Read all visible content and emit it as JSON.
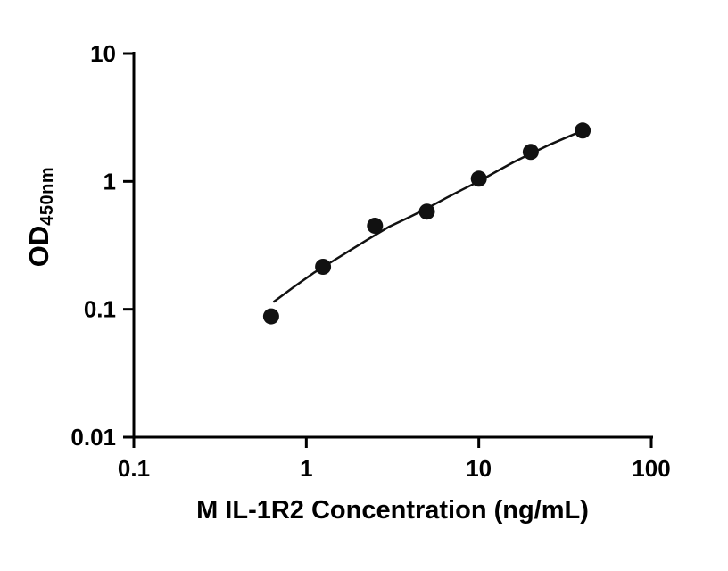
{
  "chart_data": {
    "type": "scatter",
    "title": "",
    "xlabel": "M IL-1R2 Concentration (ng/mL)",
    "ylabel_main": "OD",
    "ylabel_sub": "450nm",
    "x_scale": "log",
    "y_scale": "log",
    "xlim": [
      0.1,
      100
    ],
    "ylim": [
      0.01,
      10
    ],
    "grid": false,
    "legend": "none",
    "x_ticks": [
      {
        "value": 0.1,
        "label": "0.1"
      },
      {
        "value": 1,
        "label": "1"
      },
      {
        "value": 10,
        "label": "10"
      },
      {
        "value": 100,
        "label": "100"
      }
    ],
    "y_ticks": [
      {
        "value": 0.01,
        "label": "0.01"
      },
      {
        "value": 0.1,
        "label": "0.1"
      },
      {
        "value": 1,
        "label": "1"
      },
      {
        "value": 10,
        "label": "10"
      }
    ],
    "points": [
      {
        "x": 0.625,
        "y": 0.088
      },
      {
        "x": 1.25,
        "y": 0.215
      },
      {
        "x": 2.5,
        "y": 0.45
      },
      {
        "x": 5,
        "y": 0.58
      },
      {
        "x": 10,
        "y": 1.05
      },
      {
        "x": 20,
        "y": 1.7
      },
      {
        "x": 40,
        "y": 2.5
      }
    ],
    "fit_curve": [
      [
        0.65,
        0.115
      ],
      [
        0.85,
        0.15
      ],
      [
        1.1,
        0.192
      ],
      [
        1.4,
        0.235
      ],
      [
        1.8,
        0.29
      ],
      [
        2.3,
        0.355
      ],
      [
        3.0,
        0.44
      ],
      [
        3.9,
        0.52
      ],
      [
        5.0,
        0.615
      ],
      [
        6.5,
        0.745
      ],
      [
        8.0,
        0.86
      ],
      [
        10,
        1.0
      ],
      [
        13,
        1.22
      ],
      [
        16,
        1.42
      ],
      [
        20,
        1.65
      ],
      [
        26,
        1.95
      ],
      [
        32,
        2.2
      ],
      [
        40,
        2.5
      ]
    ],
    "marker_radius": 9,
    "colors": {
      "marker": "#111111",
      "line": "#111111",
      "axis": "#000000",
      "background": "#ffffff"
    }
  }
}
